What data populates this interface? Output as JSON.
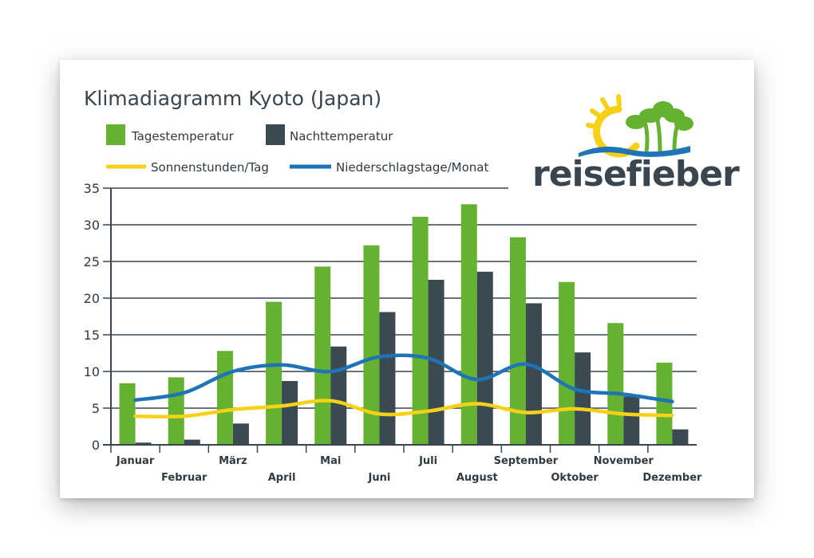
{
  "chart_data": {
    "type": "bar",
    "title": "Klimadiagramm Kyoto (Japan)",
    "categories": [
      "Januar",
      "Februar",
      "März",
      "April",
      "Mai",
      "Juni",
      "Juli",
      "August",
      "September",
      "Oktober",
      "November",
      "Dezember"
    ],
    "yticks": [
      "0",
      "5",
      "10",
      "15",
      "20",
      "25",
      "30",
      "35"
    ],
    "ylim": [
      0,
      35
    ],
    "grid": true,
    "legend_position": "top-left",
    "series": [
      {
        "name": "Tagestemperatur",
        "kind": "bar",
        "color": "#64b22f",
        "values": [
          8.4,
          9.2,
          12.8,
          19.5,
          24.3,
          27.2,
          31.1,
          32.8,
          28.3,
          22.2,
          16.6,
          11.2
        ]
      },
      {
        "name": "Nachttemperatur",
        "kind": "bar",
        "color": "#3b4a52",
        "values": [
          0.3,
          0.7,
          2.9,
          8.7,
          13.4,
          18.1,
          22.5,
          23.6,
          19.3,
          12.6,
          6.6,
          2.1
        ]
      },
      {
        "name": "Sonnenstunden/Tag",
        "kind": "line",
        "color": "#f7d117",
        "values": [
          3.9,
          3.9,
          4.8,
          5.3,
          6.0,
          4.2,
          4.6,
          5.6,
          4.4,
          4.9,
          4.2,
          4.0
        ]
      },
      {
        "name": "Niederschlagstage/Monat",
        "kind": "line",
        "color": "#1f73b7",
        "values": [
          6.1,
          7.1,
          10.0,
          10.9,
          10.0,
          12.0,
          11.8,
          8.9,
          11.0,
          7.6,
          6.9,
          5.9
        ]
      }
    ]
  },
  "logo": {
    "text": "reisefieber",
    "colors": {
      "sun": "#f7d117",
      "palm": "#64b22f",
      "water": "#1f73b7"
    }
  }
}
